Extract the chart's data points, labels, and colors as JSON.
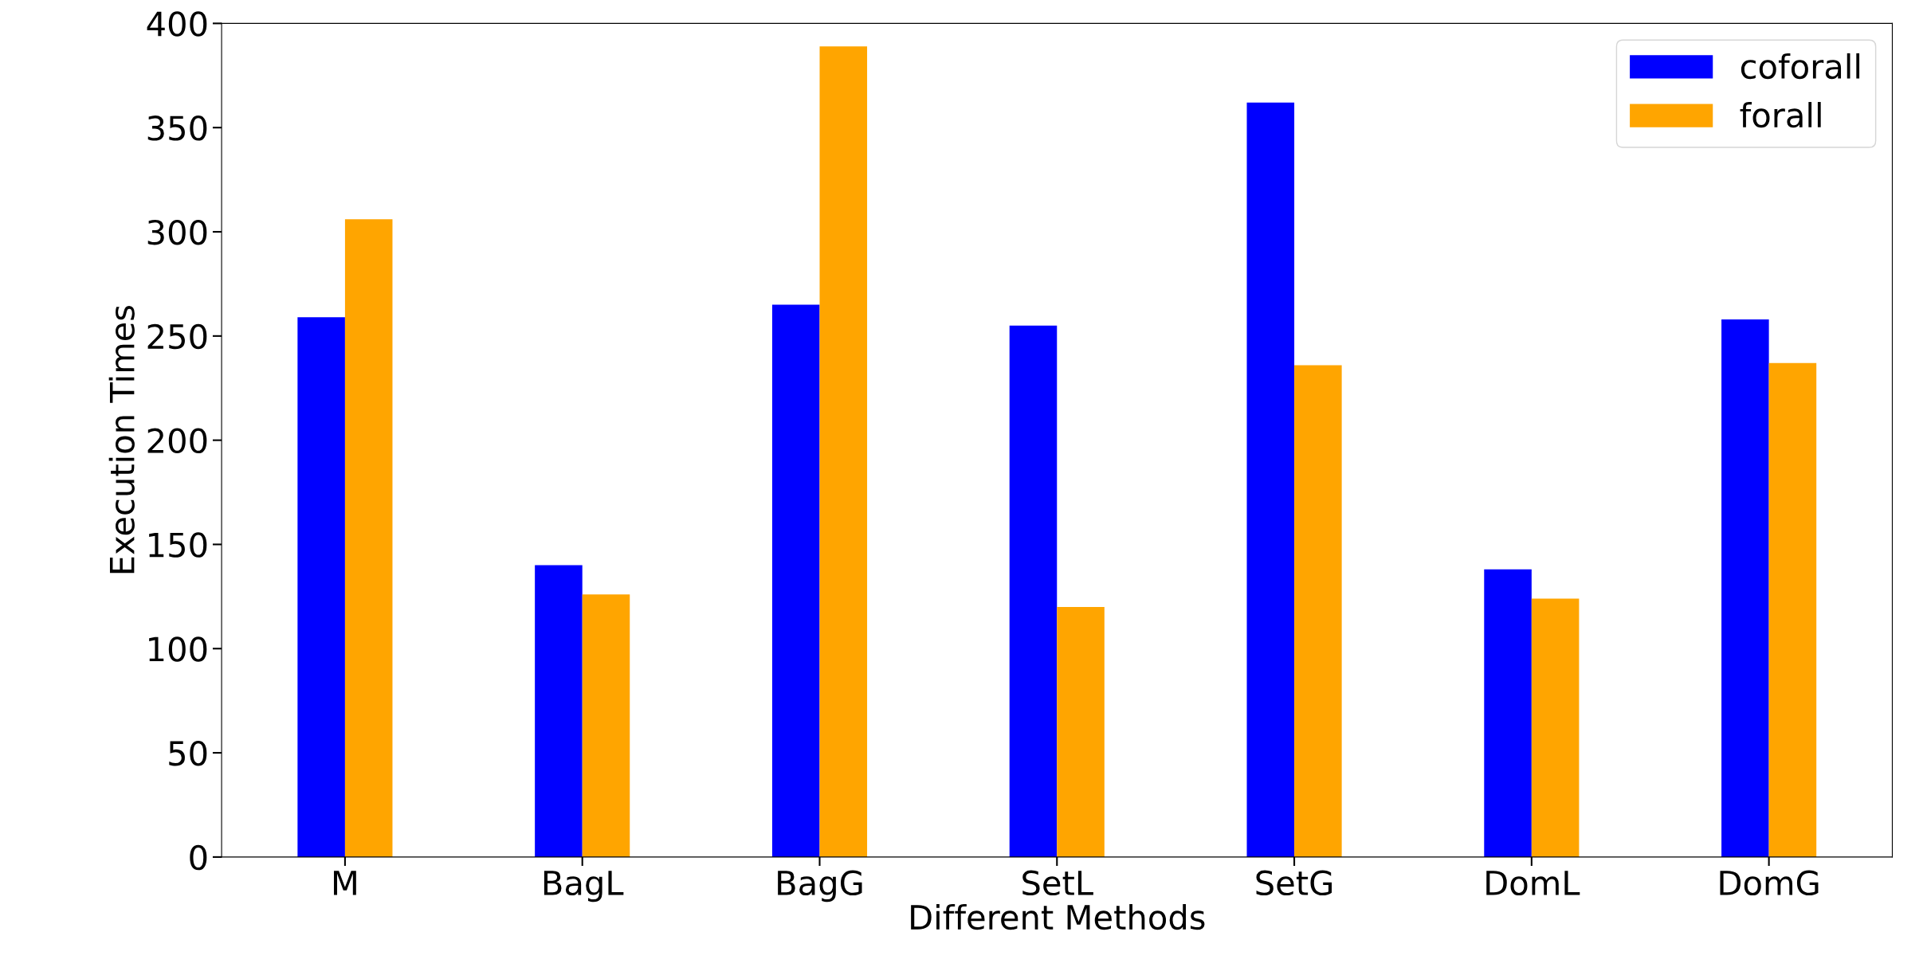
{
  "chart_data": {
    "type": "bar",
    "xlabel": "Different Methods",
    "ylabel": "Execution Times",
    "categories": [
      "M",
      "BagL",
      "BagG",
      "SetL",
      "SetG",
      "DomL",
      "DomG"
    ],
    "series": [
      {
        "name": "coforall",
        "color": "#0000ff",
        "values": [
          259,
          140,
          265,
          255,
          362,
          138,
          258
        ]
      },
      {
        "name": "forall",
        "color": "#ffa500",
        "values": [
          306,
          126,
          389,
          120,
          236,
          124,
          237
        ]
      }
    ],
    "ylim": [
      0,
      400
    ],
    "yticks": [
      0,
      50,
      100,
      150,
      200,
      250,
      300,
      350,
      400
    ],
    "grid": false,
    "legend": "top right"
  }
}
